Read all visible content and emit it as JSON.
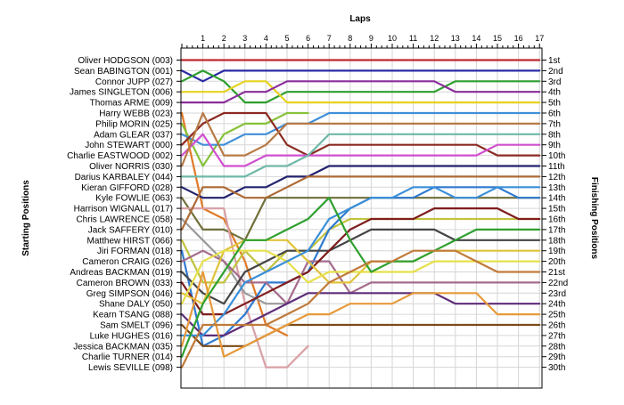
{
  "chart_data": {
    "type": "line",
    "title": "Laps",
    "ylabel_left": "Starting Positions",
    "ylabel_right": "Finishing Positions",
    "laps": [
      1,
      2,
      3,
      4,
      5,
      6,
      7,
      8,
      9,
      10,
      11,
      12,
      13,
      14,
      15,
      16,
      17
    ],
    "finish_labels": [
      "1st",
      "2nd",
      "3rd",
      "4th",
      "5th",
      "6th",
      "7th",
      "8th",
      "9th",
      "10th",
      "11th",
      "12th",
      "13th",
      "14th",
      "15th",
      "16th",
      "17th",
      "18th",
      "19th",
      "20th",
      "21st",
      "22nd",
      "23rd",
      "24th",
      "25th",
      "26th",
      "27th",
      "28th",
      "29th",
      "30th"
    ],
    "grid": true,
    "series": [
      {
        "name": "Oliver HODGSON (003)",
        "color": "#c0282d",
        "positions": [
          1,
          1,
          1,
          1,
          1,
          1,
          1,
          1,
          1,
          1,
          1,
          1,
          1,
          1,
          1,
          1,
          1,
          1
        ]
      },
      {
        "name": "Sean BABINGTON (001)",
        "color": "#2a2aa6",
        "positions": [
          2,
          3,
          2,
          2,
          2,
          2,
          2,
          2,
          2,
          2,
          2,
          2,
          2,
          2,
          2,
          2,
          2,
          2
        ]
      },
      {
        "name": "Connor JUPP (027)",
        "color": "#2e9e2e",
        "positions": [
          3,
          2,
          3,
          5,
          5,
          4,
          4,
          4,
          4,
          4,
          4,
          4,
          4,
          3,
          3,
          3,
          3,
          3
        ]
      },
      {
        "name": "James SINGLETON (006)",
        "color": "#e6d21e",
        "positions": [
          4,
          4,
          4,
          3,
          3,
          5,
          5,
          5,
          5,
          5,
          5,
          5,
          5,
          5,
          5,
          5,
          5,
          5
        ]
      },
      {
        "name": "Thomas ARME (009)",
        "color": "#8a2d9a",
        "positions": [
          5,
          5,
          5,
          4,
          4,
          3,
          3,
          3,
          3,
          3,
          3,
          3,
          3,
          4,
          4,
          4,
          4,
          4
        ]
      },
      {
        "name": "Harry WEBB (023)",
        "color": "#e07a28",
        "positions": [
          6,
          15,
          16,
          20,
          26,
          27
        ]
      },
      {
        "name": "Philip MORIN (025)",
        "color": "#86c23a",
        "positions": [
          7,
          11,
          8,
          7,
          7,
          6,
          6
        ]
      },
      {
        "name": "Adam GLEAR (037)",
        "color": "#3f8fd8",
        "positions": [
          8,
          9,
          9,
          8,
          8,
          7,
          7,
          6,
          6,
          6,
          6,
          6,
          6,
          6,
          6,
          6,
          6,
          6
        ]
      },
      {
        "name": "John STEWART (000)",
        "color": "#8b2a22",
        "positions": [
          9,
          7,
          6,
          6,
          6,
          9,
          10,
          9,
          9,
          9,
          9,
          9,
          9,
          9,
          9,
          10,
          10,
          10
        ]
      },
      {
        "name": "Charlie EASTWOOD (002)",
        "color": "#d14fcf",
        "positions": [
          10,
          8,
          11,
          11,
          10,
          10,
          10,
          10,
          10,
          10,
          10,
          10,
          10,
          10,
          10,
          9,
          9,
          9
        ]
      },
      {
        "name": "Oliver NORRIS (030)",
        "color": "#b87a45",
        "positions": [
          11,
          6,
          10,
          10,
          9,
          7,
          7,
          7,
          7,
          7,
          7,
          7,
          7,
          7,
          7,
          7,
          7,
          7
        ]
      },
      {
        "name": "Darius KARBALEY (044)",
        "color": "#6fb8a8",
        "positions": [
          12,
          12,
          12,
          12,
          11,
          11,
          10,
          8,
          8,
          8,
          8,
          8,
          8,
          8,
          8,
          8,
          8,
          8
        ]
      },
      {
        "name": "Kieran GIFFORD (028)",
        "color": "#22226e",
        "positions": [
          13,
          14,
          14,
          13,
          13,
          12,
          12,
          11,
          11,
          11,
          11,
          11,
          11,
          11,
          11,
          11,
          11,
          11
        ]
      },
      {
        "name": "Kyle FOWLIE (063)",
        "color": "#706f3a",
        "positions": [
          14,
          17,
          17,
          18,
          14,
          14,
          14,
          14,
          14,
          14,
          14,
          14,
          14,
          14,
          14,
          14,
          14,
          14
        ]
      },
      {
        "name": "Harrison WIGNALL (017)",
        "color": "#d9a0a6",
        "positions": [
          15,
          15,
          15,
          24,
          30,
          30,
          28
        ]
      },
      {
        "name": "Chris LAWRENCE (058)",
        "color": "#9a9a9a",
        "positions": [
          16,
          18,
          20,
          23,
          24,
          24,
          23
        ]
      },
      {
        "name": "Jack SAFFERY (010)",
        "color": "#ad6a35",
        "positions": [
          17,
          13,
          13,
          14,
          14,
          13,
          12,
          12,
          12,
          12,
          12,
          12,
          12,
          12,
          12,
          12,
          12,
          12
        ]
      },
      {
        "name": "Matthew HIRST (066)",
        "color": "#c0c33e",
        "positions": [
          18,
          22,
          22,
          19,
          21,
          19,
          19,
          17,
          16,
          16,
          16,
          16,
          16,
          16,
          16,
          16,
          16,
          16
        ]
      },
      {
        "name": "Jiri FORMAN (018)",
        "color": "#2f7ad0",
        "positions": [
          19,
          28,
          27,
          25,
          22,
          22,
          21,
          17,
          15,
          14,
          14,
          14,
          13,
          13,
          13,
          13,
          14,
          14
        ]
      },
      {
        "name": "Cameron CRAIG (026)",
        "color": "#a46b8c",
        "positions": [
          20,
          19,
          20,
          22,
          22,
          24,
          20,
          20,
          23,
          22,
          22,
          22,
          22,
          22,
          22,
          22,
          22,
          22
        ]
      },
      {
        "name": "Andreas BACKMAN (019)",
        "color": "#444444",
        "positions": [
          21,
          23,
          24,
          21,
          20,
          19,
          19,
          19,
          18,
          17,
          17,
          17,
          17,
          18,
          18,
          18,
          18,
          18
        ]
      },
      {
        "name": "Cameron BROWN (033)",
        "color": "#7f1d1d",
        "positions": [
          22,
          25,
          25,
          24,
          23,
          22,
          21,
          19,
          17,
          16,
          16,
          16,
          15,
          15,
          15,
          15,
          16,
          16
        ]
      },
      {
        "name": "Greg SIMPSON (046)",
        "color": "#e0c33a",
        "positions": [
          23,
          24,
          19,
          18,
          18,
          18,
          20,
          22,
          22,
          20,
          20,
          20,
          19,
          19,
          19,
          19,
          19,
          19
        ]
      },
      {
        "name": "Shane DALY (050)",
        "color": "#e6e04a",
        "positions": [
          24,
          20,
          19,
          19,
          19,
          20,
          22,
          21,
          21,
          21,
          21,
          21,
          20,
          20,
          20,
          20,
          20,
          20
        ]
      },
      {
        "name": "Kearn TSANG (088)",
        "color": "#5e2d7a",
        "positions": [
          25,
          27,
          27,
          26,
          25,
          24,
          23,
          23,
          23,
          23,
          23,
          23,
          23,
          24,
          24,
          24,
          24,
          24
        ]
      },
      {
        "name": "Sam SMELT (096)",
        "color": "#7c4a1a",
        "positions": [
          26,
          28,
          28,
          28,
          27,
          26,
          26,
          26,
          26,
          26,
          26,
          26,
          26,
          26,
          26,
          26,
          26,
          26
        ]
      },
      {
        "name": "Luke HUGHES (016)",
        "color": "#3a8fd8",
        "positions": [
          27,
          27,
          25,
          22,
          21,
          20,
          19,
          16,
          15,
          14,
          14,
          13,
          13,
          14,
          14,
          13,
          13,
          13
        ]
      },
      {
        "name": "Jessica BACKMAN (035)",
        "color": "#e79a3a",
        "positions": [
          28,
          21,
          29,
          28,
          27,
          26,
          25,
          25,
          24,
          24,
          24,
          23,
          23,
          23,
          23,
          25,
          25,
          25
        ]
      },
      {
        "name": "Charlie TURNER (014)",
        "color": "#2fa02f",
        "positions": [
          29,
          24,
          21,
          18,
          18,
          17,
          16,
          14,
          18,
          21,
          20,
          20,
          19,
          18,
          17,
          17,
          17,
          17
        ]
      },
      {
        "name": "Lewis SEVILLE (098)",
        "color": "#c07a3a",
        "positions": [
          30,
          26,
          26,
          26,
          26,
          25,
          24,
          22,
          21,
          20,
          20,
          19,
          19,
          19,
          20,
          21,
          21,
          21
        ]
      }
    ]
  }
}
